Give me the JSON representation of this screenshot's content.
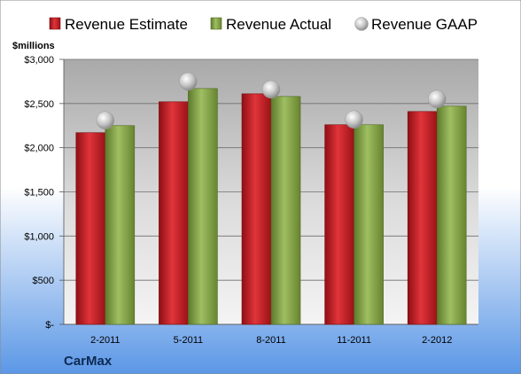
{
  "chart_data": {
    "type": "bar",
    "categories": [
      "2-2011",
      "5-2011",
      "8-2011",
      "11-2011",
      "2-2012"
    ],
    "series": [
      {
        "name": "Revenue Estimate",
        "kind": "bar",
        "color": "#cc1f26",
        "values": [
          2170,
          2520,
          2610,
          2260,
          2410
        ]
      },
      {
        "name": "Revenue Actual",
        "kind": "bar",
        "color": "#8bab4e",
        "values": [
          2250,
          2670,
          2580,
          2260,
          2470
        ]
      },
      {
        "name": "Revenue GAAP",
        "kind": "marker",
        "color": "#c9c9c9",
        "values": [
          2310,
          2750,
          2660,
          2320,
          2550
        ]
      }
    ],
    "ylabel": "$millions",
    "ylim": [
      0,
      3000
    ],
    "yticks": [
      0,
      500,
      1000,
      1500,
      2000,
      2500,
      3000
    ],
    "ytick_labels": [
      "$-",
      "$500",
      "$1,000",
      "$1,500",
      "$2,000",
      "$2,500",
      "$3,000"
    ],
    "grid": true,
    "legend": "top",
    "company": "CarMax"
  }
}
